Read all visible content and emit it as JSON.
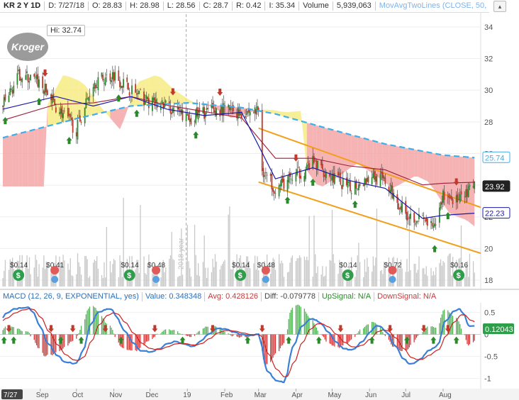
{
  "header": {
    "symbol": "KR 2 Y 1D",
    "date": "D: 7/27/18",
    "open": "O: 28.83",
    "high": "H: 28.98",
    "low": "L: 28.56",
    "close": "C: 28.7",
    "change": "R: 0.42",
    "indicator": "I: 35.34",
    "volume_label": "Volume",
    "volume_value": "5,939,063",
    "study": "MovAvgTwoLines (CLOSE, 50,"
  },
  "collapse_symbol": "▴",
  "hi_label": "Hi: 32.74",
  "logo_text": "Kroger",
  "watermark": "2018 year",
  "macd_header": {
    "study": "MACD (12, 26, 9, EXPONENTIAL, yes)",
    "value": "Value: 0.348348",
    "avg": "Avg: 0.428126",
    "diff": "Diff: -0.079778",
    "up": "UpSignal: N/A",
    "down": "DownSignal: N/A"
  },
  "price_tags": {
    "ma_slow": "25.74",
    "last": "23.92",
    "ma_fast": "22.23"
  },
  "macd_tag": "0.12043",
  "date_badge": "7/27",
  "colors": {
    "price_up": "#2a8a2a",
    "price_down": "#c0392b",
    "ma_slow": "#3daee9",
    "ma_mid": "#9c1d3c",
    "ma_fast": "#1a1aa8",
    "cloud_up": "#f5ea7a",
    "cloud_down": "#f4a0a0",
    "channel": "#f2a01b",
    "volume": "#c8c8c8",
    "macd_line": "#3b7fd6",
    "macd_avg": "#cc1f1f",
    "hist_pos": "#4caf50",
    "hist_neg": "#d32f2f"
  },
  "chart_data": {
    "type": "line",
    "price_axis": {
      "ticks": [
        34,
        32,
        30,
        28,
        26,
        24,
        22,
        20,
        18
      ],
      "ylim": [
        17.6,
        34.8
      ]
    },
    "macd_axis": {
      "ticks": [
        "0.5",
        "0",
        "-0.5",
        "-1"
      ],
      "ylim": [
        -1.2,
        0.7
      ]
    },
    "x_axis_labels": [
      "Sep",
      "Oct",
      "Nov",
      "Dec",
      "19",
      "Feb",
      "Mar",
      "Apr",
      "May",
      "Jun",
      "Jul",
      "Aug"
    ],
    "grid": true,
    "series": [
      {
        "kind": "close",
        "x": [
          "2018-08-01",
          "2018-08-15",
          "2018-08-31",
          "2018-09-14",
          "2018-10-01",
          "2018-10-15",
          "2018-11-01",
          "2018-11-15",
          "2018-12-01",
          "2018-12-15",
          "2019-01-02",
          "2019-01-15",
          "2019-02-01",
          "2019-02-15",
          "2019-03-01",
          "2019-03-04",
          "2019-03-15",
          "2019-04-01",
          "2019-04-15",
          "2019-05-01",
          "2019-05-15",
          "2019-06-03",
          "2019-06-14",
          "2019-07-01",
          "2019-07-15",
          "2019-07-25",
          "2019-08-01",
          "2019-08-15",
          "2019-08-27"
        ],
        "y": [
          29.0,
          31.0,
          30.5,
          29.0,
          27.5,
          30.5,
          31.0,
          30.0,
          29.2,
          29.0,
          28.2,
          28.6,
          28.8,
          28.6,
          28.7,
          25.0,
          23.8,
          24.6,
          25.4,
          24.6,
          23.8,
          24.6,
          24.2,
          22.2,
          21.8,
          21.2,
          23.4,
          23.0,
          23.92
        ]
      },
      {
        "kind": "ma_fast",
        "x": [
          "2018-08-01",
          "2018-09-14",
          "2018-10-15",
          "2018-11-15",
          "2018-12-15",
          "2019-01-15",
          "2019-02-15",
          "2019-03-15",
          "2019-04-15",
          "2019-05-15",
          "2019-06-14",
          "2019-07-15",
          "2019-08-01",
          "2019-08-27"
        ],
        "y": [
          28.8,
          29.6,
          29.0,
          29.6,
          28.8,
          28.4,
          28.6,
          24.4,
          25.1,
          24.3,
          23.8,
          21.9,
          22.1,
          22.23
        ]
      },
      {
        "kind": "ma_slow",
        "x": [
          "2018-08-01",
          "2018-10-01",
          "2018-11-15",
          "2019-01-02",
          "2019-02-15",
          "2019-03-15",
          "2019-05-01",
          "2019-06-14",
          "2019-08-01",
          "2019-08-27"
        ],
        "y": [
          27.0,
          28.2,
          29.0,
          29.2,
          28.9,
          28.5,
          27.5,
          26.6,
          25.9,
          25.74
        ]
      }
    ],
    "annotations": [
      {
        "type": "dividend",
        "label": "$0.14",
        "date": "2018-08-14"
      },
      {
        "type": "earnings",
        "label": "$0.41",
        "date": "2018-09-13"
      },
      {
        "type": "dividend",
        "label": "$0.14",
        "date": "2018-11-14"
      },
      {
        "type": "earnings",
        "label": "$0.48",
        "date": "2018-12-06"
      },
      {
        "type": "dividend",
        "label": "$0.14",
        "date": "2019-02-14"
      },
      {
        "type": "earnings",
        "label": "$0.48",
        "date": "2019-03-07"
      },
      {
        "type": "dividend",
        "label": "$0.14",
        "date": "2019-05-14"
      },
      {
        "type": "earnings",
        "label": "$0.72",
        "date": "2019-06-20"
      },
      {
        "type": "dividend",
        "label": "$0.16",
        "date": "2019-08-14"
      }
    ]
  }
}
